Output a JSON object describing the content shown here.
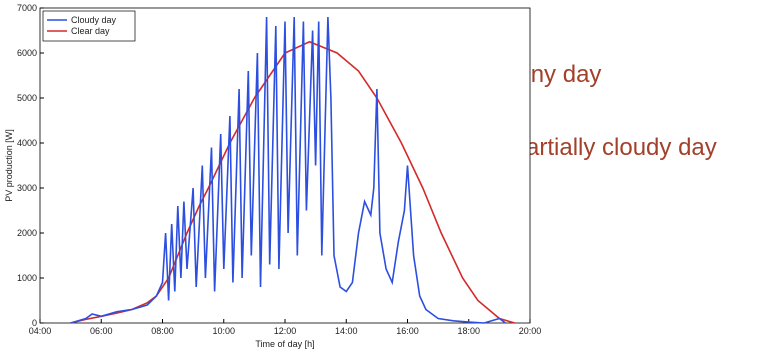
{
  "chart_data": {
    "type": "line",
    "xlabel": "Time of day [h]",
    "ylabel": "PV production [W]",
    "xlim": [
      4,
      20
    ],
    "ylim": [
      0,
      7000
    ],
    "xticks": [
      {
        "value": 4,
        "label": "04:00"
      },
      {
        "value": 6,
        "label": "06:00"
      },
      {
        "value": 8,
        "label": "08:00"
      },
      {
        "value": 10,
        "label": "10:00"
      },
      {
        "value": 12,
        "label": "12:00"
      },
      {
        "value": 14,
        "label": "14:00"
      },
      {
        "value": 16,
        "label": "16:00"
      },
      {
        "value": 18,
        "label": "18:00"
      },
      {
        "value": 20,
        "label": "20:00"
      }
    ],
    "yticks": [
      0,
      1000,
      2000,
      3000,
      4000,
      5000,
      6000,
      7000
    ],
    "legend": "upper-left",
    "annotations": [
      "Sunny day",
      "Partially cloudy day"
    ],
    "series": [
      {
        "name": "Cloudy day",
        "color": "#2c4fe0",
        "x": [
          5.0,
          5.5,
          5.7,
          6.0,
          6.5,
          7.0,
          7.5,
          7.8,
          8.0,
          8.1,
          8.2,
          8.3,
          8.4,
          8.5,
          8.6,
          8.7,
          8.8,
          9.0,
          9.1,
          9.3,
          9.4,
          9.6,
          9.7,
          9.9,
          10.0,
          10.2,
          10.3,
          10.5,
          10.6,
          10.8,
          10.9,
          11.1,
          11.2,
          11.4,
          11.5,
          11.7,
          11.8,
          12.0,
          12.1,
          12.3,
          12.4,
          12.6,
          12.7,
          12.9,
          13.0,
          13.1,
          13.2,
          13.4,
          13.5,
          13.6,
          13.8,
          14.0,
          14.2,
          14.4,
          14.6,
          14.8,
          14.9,
          15.0,
          15.1,
          15.3,
          15.5,
          15.7,
          15.9,
          16.0,
          16.2,
          16.4,
          16.6,
          17.0,
          17.5,
          18.0,
          18.5,
          19.0,
          19.2
        ],
        "values": [
          0,
          100,
          200,
          150,
          250,
          300,
          400,
          600,
          900,
          2000,
          500,
          2200,
          700,
          2600,
          1000,
          2700,
          1200,
          3000,
          800,
          3500,
          1000,
          3900,
          700,
          4200,
          1200,
          4600,
          900,
          5200,
          1000,
          5600,
          1500,
          6000,
          800,
          6800,
          1300,
          6600,
          1200,
          6700,
          2000,
          6800,
          1500,
          6700,
          2500,
          6500,
          3500,
          6700,
          1500,
          6800,
          5000,
          1500,
          800,
          700,
          900,
          2000,
          2700,
          2400,
          3000,
          5200,
          2000,
          1200,
          900,
          1800,
          2500,
          3500,
          1500,
          600,
          300,
          100,
          50,
          20,
          0,
          100,
          0
        ]
      },
      {
        "name": "Clear day",
        "color": "#d42a2a",
        "x": [
          5.0,
          5.5,
          6.0,
          6.5,
          7.0,
          7.5,
          7.8,
          8.2,
          8.5,
          8.8,
          9.2,
          9.5,
          10.2,
          11.0,
          12.0,
          12.8,
          13.7,
          14.4,
          15.0,
          15.8,
          16.5,
          17.1,
          17.8,
          18.3,
          19.0,
          19.5
        ],
        "values": [
          0,
          80,
          150,
          220,
          300,
          450,
          600,
          1000,
          1500,
          2000,
          2600,
          3000,
          4000,
          5000,
          6000,
          6250,
          6000,
          5600,
          5000,
          4000,
          3000,
          2000,
          1000,
          500,
          100,
          0
        ]
      }
    ]
  }
}
